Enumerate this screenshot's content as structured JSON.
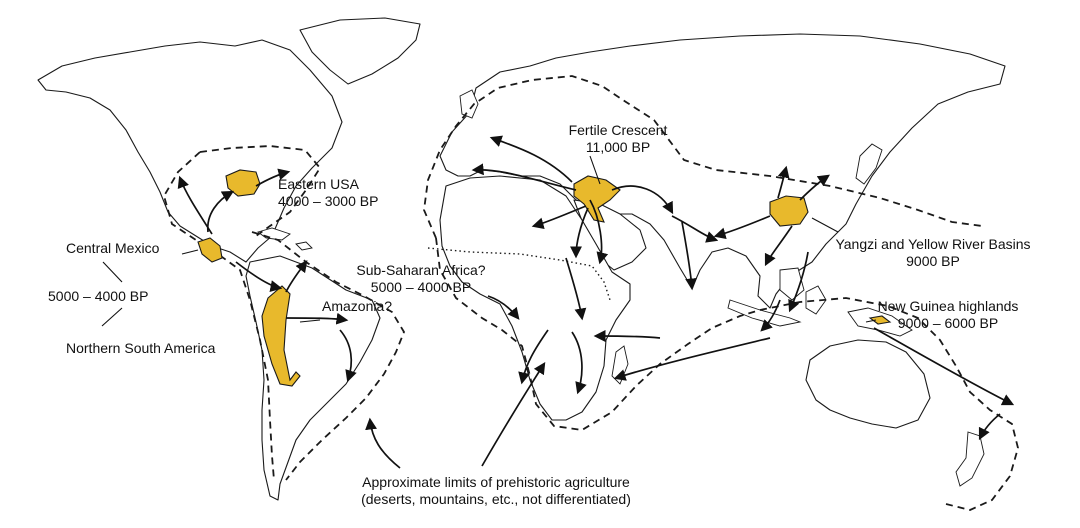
{
  "colors": {
    "origin_fill": "#e8b92c",
    "ink": "#111111",
    "background": "#ffffff"
  },
  "labels": {
    "fertile_crescent": {
      "name": "Fertile Crescent",
      "date": "11,000 BP"
    },
    "eastern_usa": {
      "name": "Eastern USA",
      "date": "4000 – 3000 BP"
    },
    "central_mexico": {
      "name": "Central Mexico"
    },
    "americas_date": "5000 – 4000 BP",
    "northern_south_america": {
      "name": "Northern South America"
    },
    "sub_saharan_africa": {
      "name": "Sub-Saharan Africa?",
      "date": "5000 – 4000 BP"
    },
    "amazonia": {
      "name": "Amazonia?"
    },
    "yangzi": {
      "name": "Yangzi and Yellow River Basins",
      "date": "9000 BP"
    },
    "new_guinea": {
      "name": "New Guinea highlands",
      "date": "9000 – 6000 BP"
    },
    "limits": {
      "line1": "Approximate limits of prehistoric agriculture",
      "line2": "(deserts, mountains, etc., not differentiated)"
    }
  }
}
